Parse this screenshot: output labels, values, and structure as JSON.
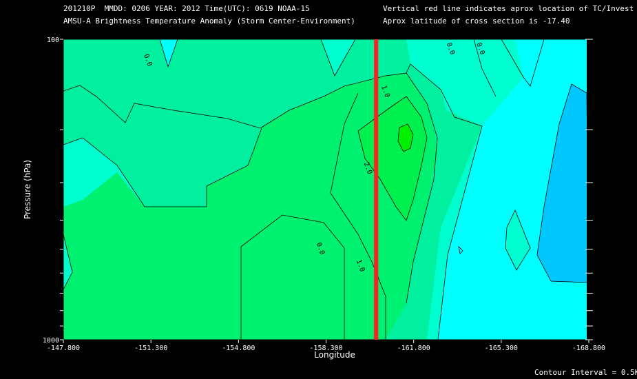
{
  "header": {
    "line1_left": "201210P  MMDD: 0206 YEAR: 2012 Time(UTC): 0619 NOAA-15",
    "line2_left": "AMSU-A Brightness Temperature Anomaly (Storm Center-Environment)",
    "line1_right": "Vertical red line indicates aprox location of TC/Invest",
    "line2_right": "Aprox latitude of cross section is -17.40"
  },
  "footer": {
    "contour_interval": "Contour Interval = 0.5K"
  },
  "colors": {
    "background": "#000000",
    "level_0_cyan": "#00ffff",
    "level_0_5": "#00ffd0",
    "level_1": "#00f0a0",
    "level_1_5": "#00f070",
    "level_2": "#00f000",
    "level_neg": "#00c8ff",
    "tc_line": "#ff2020"
  },
  "chart_data": {
    "type": "contour",
    "xlabel": "Longitude",
    "ylabel": "Pressure (hPa)",
    "xlim": [
      -147.8,
      -168.8
    ],
    "ylim": [
      1000,
      100
    ],
    "y_scale": "log",
    "x_ticks": [
      "-147.800",
      "-151.300",
      "-154.800",
      "-158.300",
      "-161.800",
      "-165.300",
      "-168.800"
    ],
    "x_tick_values": [
      -147.8,
      -151.3,
      -154.8,
      -158.3,
      -161.8,
      -165.3,
      -168.8
    ],
    "y_ticks": [
      "1000",
      "100"
    ],
    "y_tick_values": [
      1000,
      100
    ],
    "tc_longitude": -160.3,
    "contour_interval": 0.5,
    "contour_labels": [
      {
        "text": "0.0",
        "lon": -151.1,
        "p": 118
      },
      {
        "text": "1.0",
        "lon": -160.6,
        "p": 150
      },
      {
        "text": "2.0",
        "lon": -159.9,
        "p": 270
      },
      {
        "text": "1.0",
        "lon": -159.6,
        "p": 570
      },
      {
        "text": "0.0",
        "lon": -158.0,
        "p": 500
      },
      {
        "text": "0.0",
        "lon": -163.2,
        "p": 108
      },
      {
        "text": "0.0",
        "lon": -164.4,
        "p": 108
      }
    ]
  }
}
